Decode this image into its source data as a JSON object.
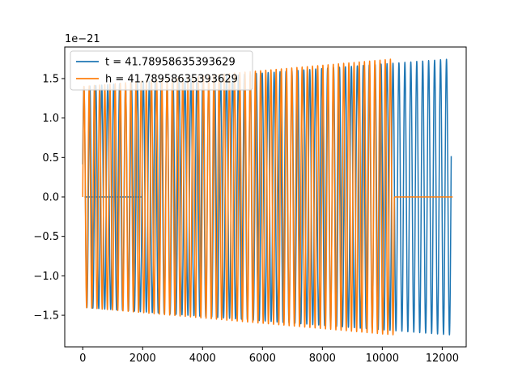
{
  "chart_data": {
    "type": "line",
    "title": "",
    "xlabel": "",
    "ylabel": "",
    "y_offset_label": "1e−21",
    "xlim": [
      -600,
      12800
    ],
    "ylim": [
      -1.9,
      1.9
    ],
    "x_ticks": [
      0,
      2000,
      4000,
      6000,
      8000,
      10000,
      12000
    ],
    "x_tick_labels": [
      "0",
      "2000",
      "4000",
      "6000",
      "8000",
      "10000",
      "12000"
    ],
    "y_ticks": [
      -1.5,
      -1.0,
      -0.5,
      0.0,
      0.5,
      1.0,
      1.5
    ],
    "y_tick_labels": [
      "−1.5",
      "−1.0",
      "−0.5",
      "0.0",
      "0.5",
      "1.0",
      "1.5"
    ],
    "grid": false,
    "legend_position": "top-left",
    "series": [
      {
        "name": "t = 41.78958635393629",
        "color": "#1f77b4",
        "segments": [
          {
            "kind": "oscillation",
            "x_start": 0,
            "x_end": 12300,
            "cycles": 62,
            "amp_start": 1.4,
            "amp_end": 1.75,
            "phase": 0.3
          },
          {
            "kind": "flat",
            "x_start": 60,
            "x_end": 2000,
            "y": 0.0
          }
        ]
      },
      {
        "name": "h = 41.78958635393629",
        "color": "#ff7f0e",
        "segments": [
          {
            "kind": "oscillation",
            "x_start": 0,
            "x_end": 10400,
            "cycles": 60,
            "amp_start": 1.4,
            "amp_end": 1.75,
            "phase": 0.0
          },
          {
            "kind": "flat",
            "x_start": 10400,
            "x_end": 12350,
            "y": 0.0
          }
        ]
      }
    ]
  }
}
